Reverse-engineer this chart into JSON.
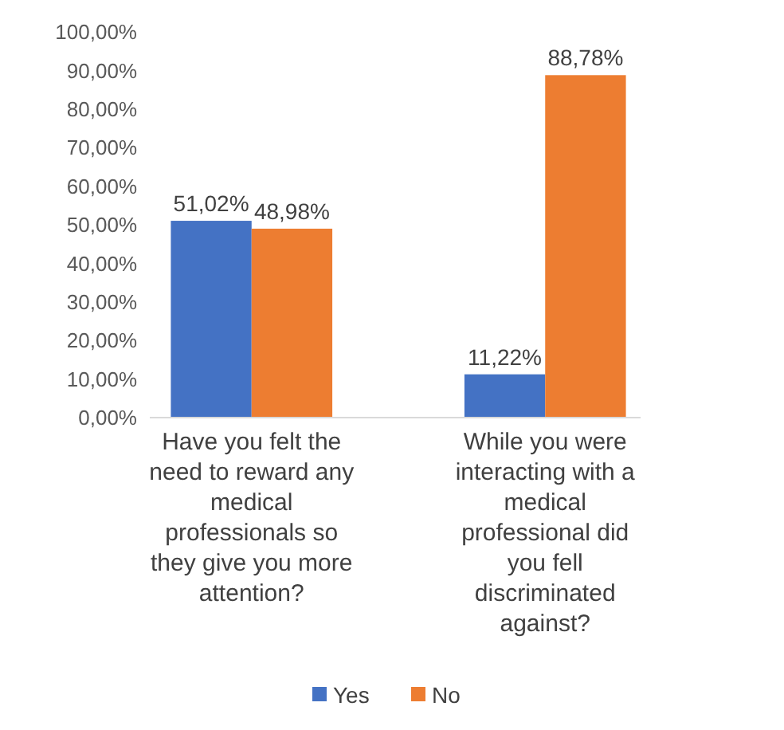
{
  "chart_data": {
    "type": "bar",
    "categories": [
      "Have you felt the need to reward any medical professionals so they give you more attention?",
      "While you were interacting with a medical professional did you fell discriminated against?"
    ],
    "series": [
      {
        "name": "Yes",
        "color": "#4472c4",
        "values": [
          51.02,
          11.22
        ],
        "value_labels": [
          "51,02%",
          "11,22%"
        ]
      },
      {
        "name": "No",
        "color": "#ed7d31",
        "values": [
          48.98,
          88.78
        ],
        "value_labels": [
          "48,98%",
          "88,78%"
        ]
      }
    ],
    "ylim": [
      0,
      100
    ],
    "yticks": [
      {
        "value": 0,
        "label": "0,00%"
      },
      {
        "value": 10,
        "label": "10,00%"
      },
      {
        "value": 20,
        "label": "20,00%"
      },
      {
        "value": 30,
        "label": "30,00%"
      },
      {
        "value": 40,
        "label": "40,00%"
      },
      {
        "value": 50,
        "label": "50,00%"
      },
      {
        "value": 60,
        "label": "60,00%"
      },
      {
        "value": 70,
        "label": "70,00%"
      },
      {
        "value": 80,
        "label": "80,00%"
      },
      {
        "value": 90,
        "label": "90,00%"
      },
      {
        "value": 100,
        "label": "100,00%"
      }
    ],
    "legend": "bottom"
  }
}
